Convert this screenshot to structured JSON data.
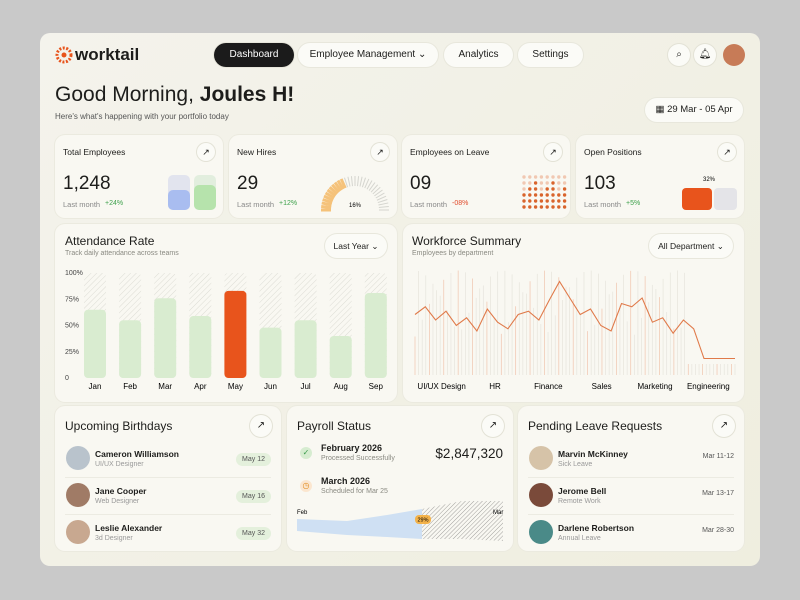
{
  "nav": {
    "brand": "worktail",
    "items": [
      "Dashboard",
      "Employee Management",
      "Analytics",
      "Settings"
    ]
  },
  "header": {
    "greeting": "Good Morning,",
    "name": "Joules H!",
    "subtitle": "Here's what's happening with your portfolio today",
    "date_range": "29 Mar - 05 Apr"
  },
  "stats": [
    {
      "title": "Total Employees",
      "value": "1,248",
      "period": "Last month",
      "change": "+24%"
    },
    {
      "title": "New Hires",
      "value": "29",
      "period": "Last month",
      "change": "+12%",
      "badge": "16%"
    },
    {
      "title": "Employees on Leave",
      "value": "09",
      "period": "Last month",
      "change": "-08%"
    },
    {
      "title": "Open Positions",
      "value": "103",
      "period": "Last month",
      "change": "+5%",
      "badge": "32%"
    }
  ],
  "attendance": {
    "type": "bar",
    "title": "Attendance Rate",
    "subtitle": "Track daily attendance across teams",
    "filter": "Last Year",
    "categories": [
      "Jan",
      "Feb",
      "Mar",
      "Apr",
      "May",
      "Jun",
      "Jul",
      "Aug",
      "Sep"
    ],
    "values": [
      65,
      55,
      76,
      59,
      83,
      48,
      55,
      40,
      81
    ],
    "colors": [
      "#d9ecd0",
      "#d9ecd0",
      "#d9ecd0",
      "#d9ecd0",
      "#e8541c",
      "#d9ecd0",
      "#d9ecd0",
      "#d9ecd0",
      "#d9ecd0"
    ],
    "ylim": [
      0,
      100
    ],
    "yticks": [
      0,
      {
        "value": 25,
        "label": "25%"
      },
      {
        "value": 50,
        "label": "50%"
      },
      {
        "value": 75,
        "label": "75%"
      },
      {
        "value": 100,
        "label": "100%"
      }
    ]
  },
  "workforce": {
    "type": "line",
    "title": "Workforce Summary",
    "subtitle": "Employees by department",
    "filter": "All Department",
    "categories": [
      "UI/UX Design",
      "HR",
      "Finance",
      "Sales",
      "Marketing",
      "Engineering"
    ],
    "values": [
      55,
      62,
      50,
      58,
      45,
      52,
      40,
      60,
      48,
      42,
      55,
      58,
      50,
      68,
      85,
      70,
      55,
      60,
      45,
      40,
      65,
      62,
      70,
      48,
      52,
      38,
      50,
      42,
      15,
      15,
      15,
      15
    ],
    "ylim": [
      0,
      100
    ],
    "color": "#e07a4a"
  },
  "birthdays": {
    "title": "Upcoming Birthdays",
    "items": [
      {
        "name": "Cameron Williamson",
        "role": "UI/UX Designer",
        "date": "May 12"
      },
      {
        "name": "Jane Cooper",
        "role": "Web Designer",
        "date": "May 16"
      },
      {
        "name": "Leslie Alexander",
        "role": "3d Designer",
        "date": "May 32"
      }
    ]
  },
  "payroll": {
    "title": "Payroll Status",
    "items": [
      {
        "month": "February 2026",
        "status": "Processed Successfully",
        "amount": "$2,847,320"
      },
      {
        "month": "March 2026",
        "status": "Scheduled for Mar 25"
      }
    ],
    "chart_start": "Feb",
    "chart_end": "Mar",
    "marker": "29%"
  },
  "leave": {
    "title": "Pending Leave Requests",
    "items": [
      {
        "name": "Marvin McKinney",
        "type": "Sick Leave",
        "dates": "Mar 11-12"
      },
      {
        "name": "Jerome Bell",
        "type": "Remote Work",
        "dates": "Mar 13-17"
      },
      {
        "name": "Darlene Robertson",
        "type": "Annual Leave",
        "dates": "Mar 28-30"
      }
    ]
  }
}
